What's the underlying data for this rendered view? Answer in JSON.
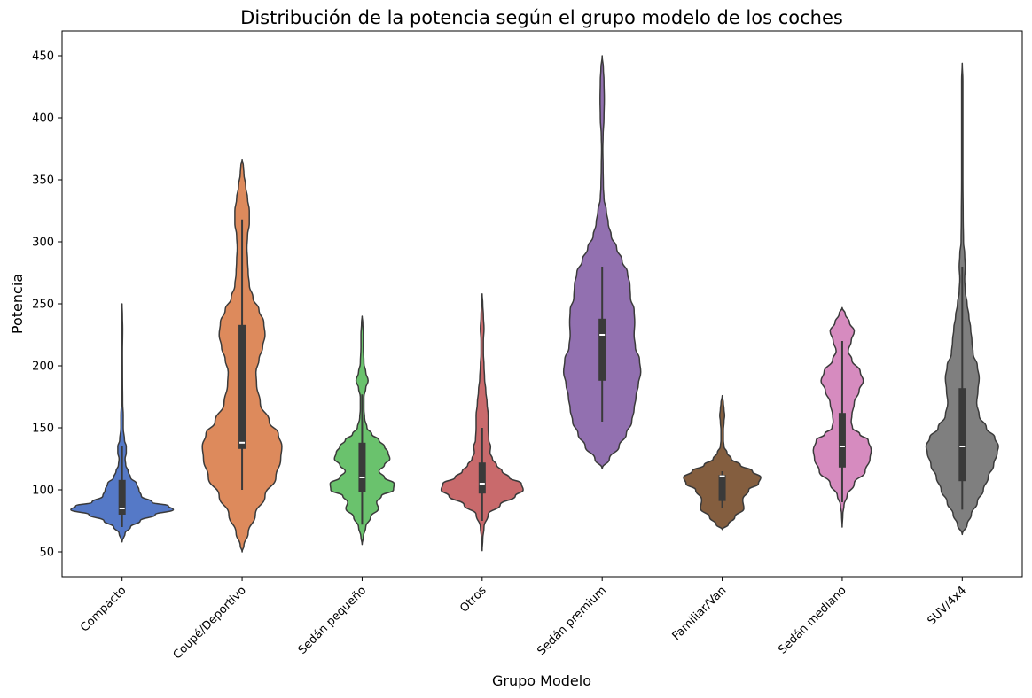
{
  "chart_data": {
    "type": "violin",
    "title": "Distribución de la potencia según el grupo modelo de los coches",
    "xlabel": "Grupo Modelo",
    "ylabel": "Potencia",
    "ylim": [
      30,
      470
    ],
    "yticks": [
      50,
      100,
      150,
      200,
      250,
      300,
      350,
      400,
      450
    ],
    "grid": false,
    "legend": "none",
    "categories": [
      "Compacto",
      "Coupé/Deportivo",
      "Sedán pequeño",
      "Otros",
      "Sedán premium",
      "Familiar/Van",
      "Sedán mediano",
      "SUV/4x4"
    ],
    "series": [
      {
        "color": "#4c72b0",
        "fill": "#5579c7",
        "range": [
          58,
          250
        ],
        "box": {
          "whisker_low": 70,
          "q1": 80,
          "median": 85,
          "q3": 108,
          "whisker_high": 135
        },
        "density": [
          [
            58,
            0.0
          ],
          [
            65,
            0.05
          ],
          [
            70,
            0.14
          ],
          [
            75,
            0.3
          ],
          [
            80,
            0.55
          ],
          [
            84,
            0.85
          ],
          [
            87,
            0.77
          ],
          [
            90,
            0.5
          ],
          [
            95,
            0.32
          ],
          [
            100,
            0.28
          ],
          [
            105,
            0.24
          ],
          [
            110,
            0.14
          ],
          [
            115,
            0.1
          ],
          [
            120,
            0.06
          ],
          [
            125,
            0.05
          ],
          [
            130,
            0.07
          ],
          [
            135,
            0.07
          ],
          [
            140,
            0.04
          ],
          [
            150,
            0.02
          ],
          [
            160,
            0.02
          ],
          [
            170,
            0.01
          ],
          [
            190,
            0.007
          ],
          [
            210,
            0.006
          ],
          [
            230,
            0.01
          ],
          [
            240,
            0.006
          ],
          [
            250,
            0.0
          ]
        ]
      },
      {
        "color": "#dd8452",
        "fill": "#dd8a5c",
        "range": [
          50,
          366
        ],
        "box": {
          "whisker_low": 100,
          "q1": 133,
          "median": 138,
          "q3": 233,
          "whisker_high": 318
        },
        "density": [
          [
            50,
            0.0
          ],
          [
            55,
            0.03
          ],
          [
            65,
            0.1
          ],
          [
            80,
            0.22
          ],
          [
            95,
            0.38
          ],
          [
            110,
            0.56
          ],
          [
            125,
            0.64
          ],
          [
            135,
            0.66
          ],
          [
            145,
            0.6
          ],
          [
            155,
            0.45
          ],
          [
            170,
            0.3
          ],
          [
            185,
            0.24
          ],
          [
            195,
            0.23
          ],
          [
            205,
            0.28
          ],
          [
            215,
            0.34
          ],
          [
            225,
            0.38
          ],
          [
            235,
            0.36
          ],
          [
            245,
            0.28
          ],
          [
            255,
            0.18
          ],
          [
            265,
            0.12
          ],
          [
            275,
            0.1
          ],
          [
            285,
            0.09
          ],
          [
            295,
            0.08
          ],
          [
            305,
            0.09
          ],
          [
            315,
            0.12
          ],
          [
            325,
            0.12
          ],
          [
            335,
            0.09
          ],
          [
            345,
            0.06
          ],
          [
            355,
            0.03
          ],
          [
            362,
            0.02
          ],
          [
            366,
            0.0
          ]
        ]
      },
      {
        "color": "#55a868",
        "fill": "#6ac26d",
        "range": [
          56,
          240
        ],
        "box": {
          "whisker_low": 72,
          "q1": 98,
          "median": 110,
          "q3": 138,
          "whisker_high": 177
        },
        "density": [
          [
            56,
            0.0
          ],
          [
            62,
            0.02
          ],
          [
            70,
            0.06
          ],
          [
            78,
            0.14
          ],
          [
            85,
            0.27
          ],
          [
            90,
            0.24
          ],
          [
            95,
            0.32
          ],
          [
            100,
            0.52
          ],
          [
            105,
            0.53
          ],
          [
            110,
            0.37
          ],
          [
            115,
            0.28
          ],
          [
            120,
            0.37
          ],
          [
            125,
            0.46
          ],
          [
            130,
            0.43
          ],
          [
            135,
            0.37
          ],
          [
            140,
            0.28
          ],
          [
            145,
            0.16
          ],
          [
            150,
            0.08
          ],
          [
            158,
            0.04
          ],
          [
            165,
            0.03
          ],
          [
            175,
            0.03
          ],
          [
            182,
            0.06
          ],
          [
            188,
            0.1
          ],
          [
            195,
            0.06
          ],
          [
            202,
            0.03
          ],
          [
            215,
            0.02
          ],
          [
            225,
            0.02
          ],
          [
            235,
            0.01
          ],
          [
            240,
            0.0
          ]
        ]
      },
      {
        "color": "#c44e52",
        "fill": "#c96a6c",
        "range": [
          51,
          258
        ],
        "box": {
          "whisker_low": 75,
          "q1": 97,
          "median": 105,
          "q3": 122,
          "whisker_high": 150
        },
        "density": [
          [
            51,
            0.0
          ],
          [
            60,
            0.01
          ],
          [
            70,
            0.03
          ],
          [
            80,
            0.1
          ],
          [
            88,
            0.3
          ],
          [
            95,
            0.55
          ],
          [
            100,
            0.68
          ],
          [
            105,
            0.65
          ],
          [
            110,
            0.45
          ],
          [
            115,
            0.33
          ],
          [
            120,
            0.24
          ],
          [
            125,
            0.17
          ],
          [
            130,
            0.13
          ],
          [
            135,
            0.14
          ],
          [
            140,
            0.11
          ],
          [
            150,
            0.1
          ],
          [
            160,
            0.1
          ],
          [
            170,
            0.08
          ],
          [
            180,
            0.06
          ],
          [
            190,
            0.04
          ],
          [
            200,
            0.03
          ],
          [
            210,
            0.02
          ],
          [
            220,
            0.02
          ],
          [
            230,
            0.03
          ],
          [
            240,
            0.02
          ],
          [
            250,
            0.01
          ],
          [
            258,
            0.0
          ]
        ]
      },
      {
        "color": "#8172b3",
        "fill": "#9270b0",
        "range": [
          117,
          450
        ],
        "box": {
          "whisker_low": 155,
          "q1": 188,
          "median": 225,
          "q3": 238,
          "whisker_high": 280
        },
        "density": [
          [
            117,
            0.0
          ],
          [
            125,
            0.12
          ],
          [
            135,
            0.28
          ],
          [
            145,
            0.4
          ],
          [
            155,
            0.49
          ],
          [
            165,
            0.53
          ],
          [
            175,
            0.56
          ],
          [
            185,
            0.6
          ],
          [
            195,
            0.64
          ],
          [
            205,
            0.62
          ],
          [
            215,
            0.55
          ],
          [
            225,
            0.53
          ],
          [
            235,
            0.54
          ],
          [
            245,
            0.53
          ],
          [
            255,
            0.47
          ],
          [
            265,
            0.46
          ],
          [
            275,
            0.42
          ],
          [
            285,
            0.33
          ],
          [
            295,
            0.24
          ],
          [
            305,
            0.15
          ],
          [
            315,
            0.1
          ],
          [
            325,
            0.07
          ],
          [
            335,
            0.03
          ],
          [
            345,
            0.02
          ],
          [
            360,
            0.015
          ],
          [
            375,
            0.01
          ],
          [
            385,
            0.015
          ],
          [
            400,
            0.03
          ],
          [
            415,
            0.035
          ],
          [
            430,
            0.03
          ],
          [
            440,
            0.02
          ],
          [
            450,
            0.0
          ]
        ]
      },
      {
        "color": "#937860",
        "fill": "#845e3f",
        "range": [
          68,
          176
        ],
        "box": {
          "whisker_low": 85,
          "q1": 91,
          "median": 111,
          "q3": 112,
          "whisker_high": 115
        },
        "density": [
          [
            68,
            0.0
          ],
          [
            72,
            0.1
          ],
          [
            78,
            0.21
          ],
          [
            85,
            0.36
          ],
          [
            92,
            0.34
          ],
          [
            100,
            0.44
          ],
          [
            105,
            0.6
          ],
          [
            110,
            0.64
          ],
          [
            115,
            0.5
          ],
          [
            120,
            0.3
          ],
          [
            125,
            0.15
          ],
          [
            130,
            0.08
          ],
          [
            135,
            0.03
          ],
          [
            140,
            0.02
          ],
          [
            148,
            0.02
          ],
          [
            155,
            0.03
          ],
          [
            160,
            0.04
          ],
          [
            165,
            0.03
          ],
          [
            170,
            0.02
          ],
          [
            176,
            0.0
          ]
        ]
      },
      {
        "color": "#da8bc3",
        "fill": "#d68bbf",
        "range": [
          70,
          247
        ],
        "box": {
          "whisker_low": 90,
          "q1": 118,
          "median": 135,
          "q3": 162,
          "whisker_high": 220
        },
        "density": [
          [
            70,
            0.0
          ],
          [
            80,
            0.01
          ],
          [
            88,
            0.03
          ],
          [
            95,
            0.08
          ],
          [
            105,
            0.2
          ],
          [
            115,
            0.38
          ],
          [
            125,
            0.46
          ],
          [
            132,
            0.48
          ],
          [
            140,
            0.43
          ],
          [
            145,
            0.29
          ],
          [
            150,
            0.17
          ],
          [
            155,
            0.15
          ],
          [
            160,
            0.16
          ],
          [
            170,
            0.2
          ],
          [
            180,
            0.28
          ],
          [
            188,
            0.35
          ],
          [
            195,
            0.3
          ],
          [
            205,
            0.16
          ],
          [
            212,
            0.1
          ],
          [
            220,
            0.15
          ],
          [
            228,
            0.2
          ],
          [
            235,
            0.12
          ],
          [
            242,
            0.05
          ],
          [
            247,
            0.0
          ]
        ]
      },
      {
        "color": "#8c8c8c",
        "fill": "#7f7f7f",
        "range": [
          64,
          444
        ],
        "box": {
          "whisker_low": 84,
          "q1": 107,
          "median": 135,
          "q3": 182,
          "whisker_high": 280
        },
        "density": [
          [
            64,
            0.0
          ],
          [
            72,
            0.08
          ],
          [
            80,
            0.15
          ],
          [
            90,
            0.25
          ],
          [
            100,
            0.35
          ],
          [
            110,
            0.43
          ],
          [
            120,
            0.52
          ],
          [
            130,
            0.58
          ],
          [
            135,
            0.6
          ],
          [
            142,
            0.54
          ],
          [
            150,
            0.4
          ],
          [
            160,
            0.28
          ],
          [
            170,
            0.24
          ],
          [
            180,
            0.26
          ],
          [
            190,
            0.28
          ],
          [
            200,
            0.25
          ],
          [
            210,
            0.18
          ],
          [
            220,
            0.16
          ],
          [
            230,
            0.14
          ],
          [
            240,
            0.11
          ],
          [
            250,
            0.08
          ],
          [
            260,
            0.05
          ],
          [
            270,
            0.04
          ],
          [
            280,
            0.05
          ],
          [
            290,
            0.04
          ],
          [
            300,
            0.02
          ],
          [
            320,
            0.015
          ],
          [
            350,
            0.01
          ],
          [
            380,
            0.01
          ],
          [
            410,
            0.01
          ],
          [
            430,
            0.01
          ],
          [
            444,
            0.0
          ]
        ]
      }
    ]
  }
}
